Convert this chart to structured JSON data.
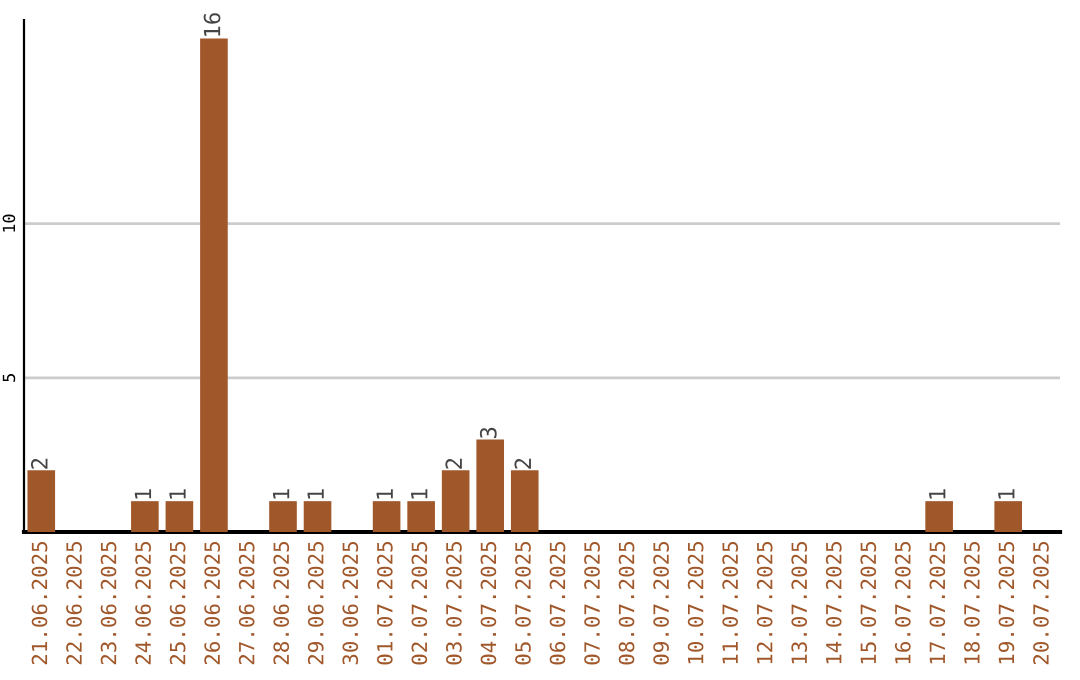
{
  "chart_data": {
    "type": "bar",
    "categories": [
      "21.06.2025",
      "22.06.2025",
      "23.06.2025",
      "24.06.2025",
      "25.06.2025",
      "26.06.2025",
      "27.06.2025",
      "28.06.2025",
      "29.06.2025",
      "30.06.2025",
      "01.07.2025",
      "02.07.2025",
      "03.07.2025",
      "04.07.2025",
      "05.07.2025",
      "06.07.2025",
      "07.07.2025",
      "08.07.2025",
      "09.07.2025",
      "10.07.2025",
      "11.07.2025",
      "12.07.2025",
      "13.07.2025",
      "14.07.2025",
      "15.07.2025",
      "16.07.2025",
      "17.07.2025",
      "18.07.2025",
      "19.07.2025",
      "20.07.2025"
    ],
    "values": [
      2,
      0,
      0,
      1,
      1,
      16,
      0,
      1,
      1,
      0,
      1,
      1,
      2,
      3,
      2,
      0,
      0,
      0,
      0,
      0,
      0,
      0,
      0,
      0,
      0,
      0,
      1,
      0,
      1,
      0
    ],
    "value_labels": [
      "2",
      null,
      null,
      "1",
      "1",
      "16",
      null,
      "1",
      "1",
      null,
      "1",
      "1",
      "2",
      "3",
      "2",
      null,
      null,
      null,
      null,
      null,
      null,
      null,
      null,
      null,
      null,
      null,
      "1",
      null,
      "1",
      null
    ],
    "color": "#a0572a",
    "ylim": [
      0,
      16.6
    ],
    "yticks": [
      5,
      10
    ],
    "grid": "y"
  }
}
